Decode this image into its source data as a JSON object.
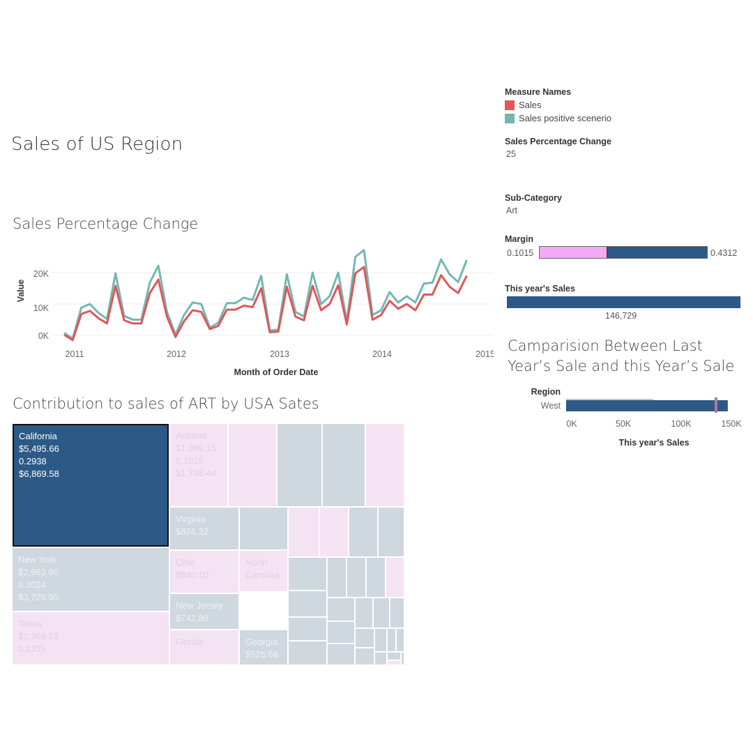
{
  "dashboard": {
    "title": "Sales of US Region"
  },
  "line_section": {
    "title": "Sales Percentage Change"
  },
  "legend": {
    "title": "Measure Names",
    "items": [
      {
        "label": "Sales",
        "color": "#e05659"
      },
      {
        "label": "Sales positive scenerio",
        "color": "#72b8b2"
      }
    ]
  },
  "params": {
    "spc_label": "Sales Percentage Change",
    "spc_value": "25",
    "subcat_label": "Sub-Category",
    "subcat_value": "Art",
    "margin_label": "Margin",
    "margin_min": "0.1015",
    "margin_max": "0.4312",
    "this_year_label": "This year's Sales",
    "this_year_value": "146,729"
  },
  "margin_bar": {
    "fill_fraction": 0.4,
    "pink": "#f5a8f5",
    "blue": "#2c5985"
  },
  "compare": {
    "title_line1": "Camparision Between Last",
    "title_line2": "Year’s  Sale and this Year’s Sale",
    "region_label": "Region",
    "row_label": "West",
    "x_ticks": [
      "0K",
      "50K",
      "100K",
      "150K"
    ],
    "x_title": "This year's Sales"
  },
  "treemap_section": {
    "title": "Contribution to sales of ART by USA Sates"
  },
  "treemap": {
    "highlight_color": "#2c5985",
    "grey": "#cfd7df",
    "pink": "#f4e3f2",
    "states": [
      {
        "name": "California",
        "lines": [
          "California",
          "$5,495.66",
          "0.2938",
          "$6,869.58"
        ]
      },
      {
        "name": "Arizona",
        "lines": [
          "Arizona",
          "$1,389.15",
          "0.1015",
          "$1,736.44"
        ]
      },
      {
        "name": "Virginia",
        "lines": [
          "Virginia",
          "$876.32"
        ]
      },
      {
        "name": "New York",
        "lines": [
          "New York",
          "$2,983.60",
          "0.3024",
          "$3,729.50"
        ]
      },
      {
        "name": "Ohio",
        "lines": [
          "Ohio",
          "$840.10"
        ]
      },
      {
        "name": "North Carolina",
        "lines": [
          "North",
          "Carolina"
        ]
      },
      {
        "name": "New Jersey",
        "lines": [
          "New Jersey",
          "$742.80"
        ]
      },
      {
        "name": "Texas",
        "lines": [
          "Texas",
          "$2,369.53",
          "0.1335"
        ]
      },
      {
        "name": "Florida",
        "lines": [
          "Florida"
        ]
      },
      {
        "name": "Georgia",
        "lines": [
          "Georgia",
          "$526.68"
        ]
      }
    ]
  },
  "chart_data": [
    {
      "type": "line",
      "title": "Sales Percentage Change",
      "xlabel": "Month of Order Date",
      "ylabel": "Value",
      "x_ticks": [
        "2011",
        "2012",
        "2013",
        "2014",
        "2015"
      ],
      "y_ticks": [
        "0K",
        "10K",
        "20K"
      ],
      "ylim": [
        -2000,
        28000
      ],
      "x": [
        "2011-01",
        "2011-02",
        "2011-03",
        "2011-04",
        "2011-05",
        "2011-06",
        "2011-07",
        "2011-08",
        "2011-09",
        "2011-10",
        "2011-11",
        "2011-12",
        "2012-01",
        "2012-02",
        "2012-03",
        "2012-04",
        "2012-05",
        "2012-06",
        "2012-07",
        "2012-08",
        "2012-09",
        "2012-10",
        "2012-11",
        "2012-12",
        "2013-01",
        "2013-02",
        "2013-03",
        "2013-04",
        "2013-05",
        "2013-06",
        "2013-07",
        "2013-08",
        "2013-09",
        "2013-10",
        "2013-11",
        "2013-12",
        "2014-01",
        "2014-02",
        "2014-03",
        "2014-04",
        "2014-05",
        "2014-06",
        "2014-07",
        "2014-08",
        "2014-09",
        "2014-10",
        "2014-11",
        "2014-12"
      ],
      "series": [
        {
          "name": "Sales",
          "color": "#e05659",
          "values": [
            200,
            -1500,
            6800,
            7800,
            5500,
            3800,
            15800,
            4800,
            3800,
            3800,
            13500,
            17800,
            6000,
            -500,
            4500,
            8000,
            7500,
            2000,
            3000,
            8200,
            8200,
            9500,
            9000,
            15000,
            1000,
            1200,
            15500,
            6000,
            4800,
            15800,
            8000,
            10000,
            16000,
            3500,
            19800,
            21800,
            5000,
            6500,
            11000,
            8500,
            10000,
            8000,
            13000,
            13000,
            19200,
            15500,
            13500,
            19000
          ]
        },
        {
          "name": "Sales positive scenerio",
          "color": "#72b8b2",
          "values": [
            800,
            -1000,
            8800,
            10000,
            7200,
            5200,
            19800,
            6200,
            5000,
            5000,
            16800,
            22200,
            7500,
            300,
            6500,
            10500,
            10000,
            2500,
            4000,
            10300,
            10300,
            12000,
            11300,
            19000,
            1600,
            1800,
            19500,
            7500,
            6000,
            20000,
            10000,
            12500,
            20000,
            4500,
            25000,
            27200,
            6500,
            8000,
            13800,
            10500,
            12500,
            10500,
            16500,
            16800,
            24200,
            19500,
            17000,
            24000
          ]
        }
      ]
    },
    {
      "type": "bar",
      "title": "Camparision Between Last Year’s  Sale and this Year’s Sale",
      "categories": [
        "West"
      ],
      "series": [
        {
          "name": "This year's Sales",
          "values": [
            146729
          ]
        },
        {
          "name": "",
          "values": [
            79000
          ]
        }
      ],
      "reference_value": 136000,
      "xlabel": "This year's Sales",
      "xlim": [
        0,
        150000
      ],
      "x_ticks": [
        "0K",
        "50K",
        "100K",
        "150K"
      ]
    }
  ]
}
